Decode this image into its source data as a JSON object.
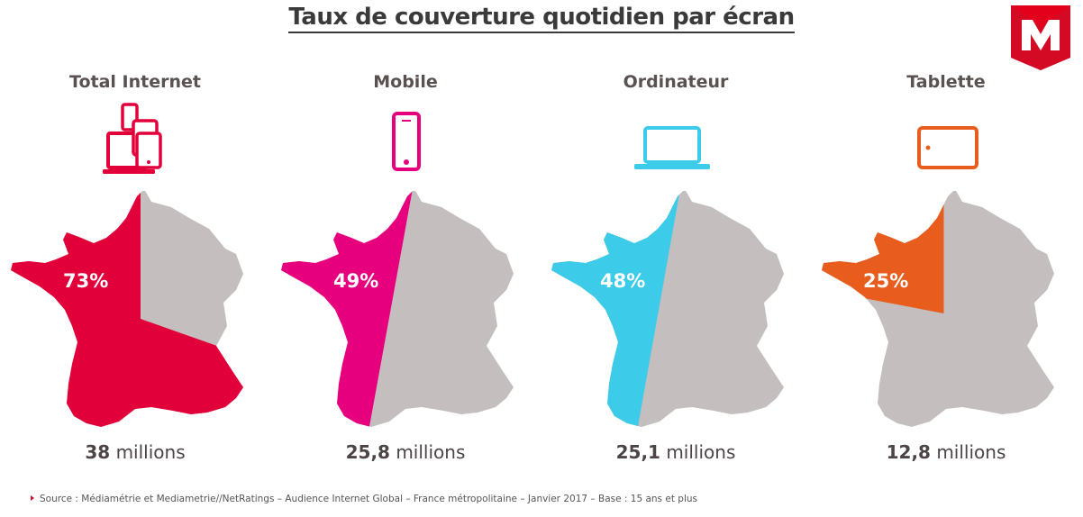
{
  "title": "Taux de couverture quotidien par écran",
  "logo": {
    "name": "mediametrie-logo-icon",
    "colors": [
      "#e2001a",
      "#c8102e"
    ]
  },
  "chart_data": {
    "type": "pie",
    "title": "Taux de couverture quotidien par écran",
    "series": [
      {
        "name": "Total Internet",
        "value": 73,
        "value_label": "73%",
        "audience_value": "38",
        "audience_unit": "millions",
        "color": "#e2003a",
        "icon": "multi-device-icon"
      },
      {
        "name": "Mobile",
        "value": 49,
        "value_label": "49%",
        "audience_value": "25,8",
        "audience_unit": "millions",
        "color": "#e6007e",
        "icon": "smartphone-icon"
      },
      {
        "name": "Ordinateur",
        "value": 48,
        "value_label": "48%",
        "audience_value": "25,1",
        "audience_unit": "millions",
        "color": "#3ccbe8",
        "icon": "laptop-icon"
      },
      {
        "name": "Tablette",
        "value": 25,
        "value_label": "25%",
        "audience_value": "12,8",
        "audience_unit": "millions",
        "color": "#e85d1e",
        "icon": "tablet-icon"
      }
    ],
    "remainder_color": "#c5bebe"
  },
  "source": "Source : Médiamétrie et Mediametrie//NetRatings – Audience Internet Global – France métropolitaine – Janvier 2017 – Base : 15 ans et plus"
}
